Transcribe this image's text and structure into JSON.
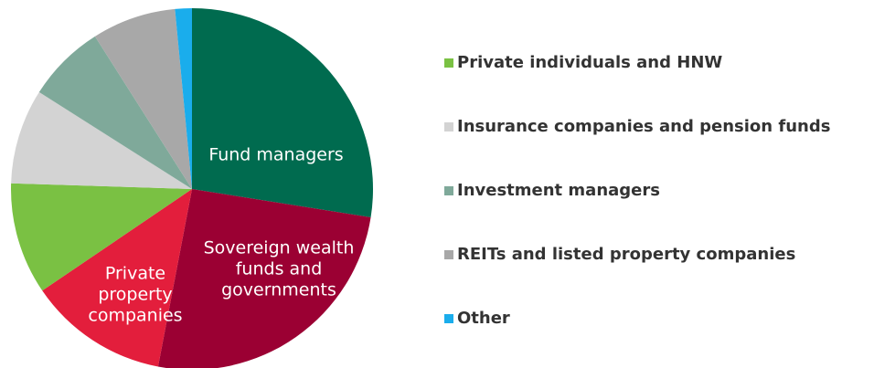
{
  "chart_data": {
    "type": "pie",
    "categories": [
      "Fund managers",
      "Sovereign wealth funds and governments",
      "Private property companies",
      "Private individuals and HNW",
      "Insurance companies and pension funds",
      "Investment managers",
      "REITs and listed property companies",
      "Other"
    ],
    "values": [
      27.5,
      25.5,
      12.5,
      10,
      8.5,
      7,
      7.5,
      1.5
    ],
    "colors": [
      "#006b4f",
      "#9b0033",
      "#e31e3c",
      "#7ac143",
      "#d3d3d3",
      "#7fa99a",
      "#a8a8a8",
      "#1aadec"
    ],
    "label_position": [
      "inside",
      "inside",
      "inside",
      "legend",
      "legend",
      "legend",
      "legend",
      "legend"
    ]
  }
}
